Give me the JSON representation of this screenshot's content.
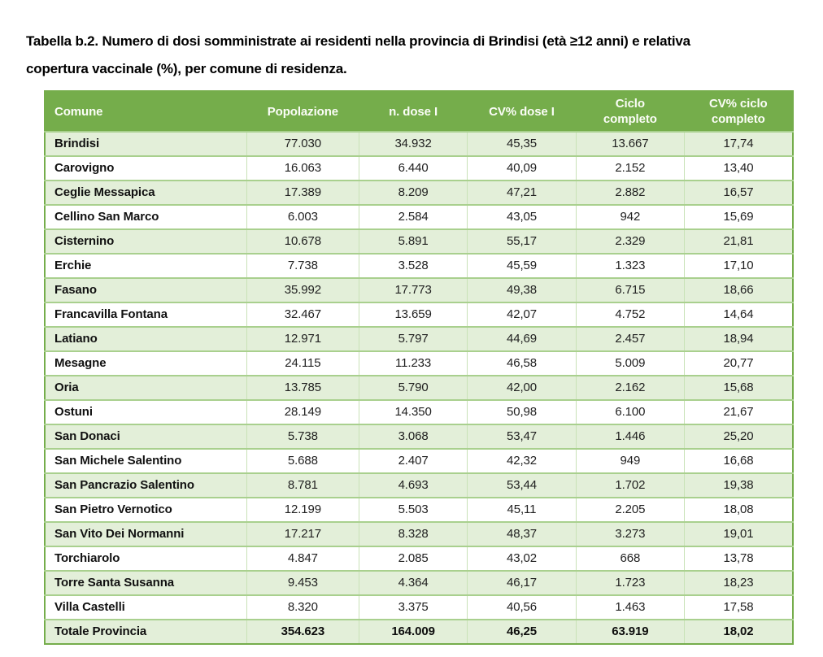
{
  "title": "Tabella b.2. Numero di dosi somministrate ai residenti nella provincia di Brindisi (età ≥12 anni) e relativa copertura vaccinale (%), per comune di residenza.",
  "colors": {
    "header_green": "#75AD4B",
    "row_alt_green": "#E3EFD9",
    "grid_green": "#A9D08E",
    "grid_light_green": "#C9E2B7",
    "header_text": "#FBFDF7",
    "body_text": "#212121"
  },
  "table": {
    "columns": [
      "Comune",
      "Popolazione",
      "n. dose I",
      "CV% dose I",
      "Ciclo completo",
      "CV% ciclo completo"
    ],
    "rows": [
      [
        "Brindisi",
        "77.030",
        "34.932",
        "45,35",
        "13.667",
        "17,74"
      ],
      [
        "Carovigno",
        "16.063",
        "6.440",
        "40,09",
        "2.152",
        "13,40"
      ],
      [
        "Ceglie Messapica",
        "17.389",
        "8.209",
        "47,21",
        "2.882",
        "16,57"
      ],
      [
        "Cellino San Marco",
        "6.003",
        "2.584",
        "43,05",
        "942",
        "15,69"
      ],
      [
        "Cisternino",
        "10.678",
        "5.891",
        "55,17",
        "2.329",
        "21,81"
      ],
      [
        "Erchie",
        "7.738",
        "3.528",
        "45,59",
        "1.323",
        "17,10"
      ],
      [
        "Fasano",
        "35.992",
        "17.773",
        "49,38",
        "6.715",
        "18,66"
      ],
      [
        "Francavilla Fontana",
        "32.467",
        "13.659",
        "42,07",
        "4.752",
        "14,64"
      ],
      [
        "Latiano",
        "12.971",
        "5.797",
        "44,69",
        "2.457",
        "18,94"
      ],
      [
        "Mesagne",
        "24.115",
        "11.233",
        "46,58",
        "5.009",
        "20,77"
      ],
      [
        "Oria",
        "13.785",
        "5.790",
        "42,00",
        "2.162",
        "15,68"
      ],
      [
        "Ostuni",
        "28.149",
        "14.350",
        "50,98",
        "6.100",
        "21,67"
      ],
      [
        "San Donaci",
        "5.738",
        "3.068",
        "53,47",
        "1.446",
        "25,20"
      ],
      [
        "San Michele Salentino",
        "5.688",
        "2.407",
        "42,32",
        "949",
        "16,68"
      ],
      [
        "San Pancrazio Salentino",
        "8.781",
        "4.693",
        "53,44",
        "1.702",
        "19,38"
      ],
      [
        "San Pietro Vernotico",
        "12.199",
        "5.503",
        "45,11",
        "2.205",
        "18,08"
      ],
      [
        "San Vito Dei Normanni",
        "17.217",
        "8.328",
        "48,37",
        "3.273",
        "19,01"
      ],
      [
        "Torchiarolo",
        "4.847",
        "2.085",
        "43,02",
        "668",
        "13,78"
      ],
      [
        "Torre Santa Susanna",
        "9.453",
        "4.364",
        "46,17",
        "1.723",
        "18,23"
      ],
      [
        "Villa Castelli",
        "8.320",
        "3.375",
        "40,56",
        "1.463",
        "17,58"
      ]
    ],
    "total_row": [
      "Totale Provincia",
      "354.623",
      "164.009",
      "46,25",
      "63.919",
      "18,02"
    ]
  }
}
